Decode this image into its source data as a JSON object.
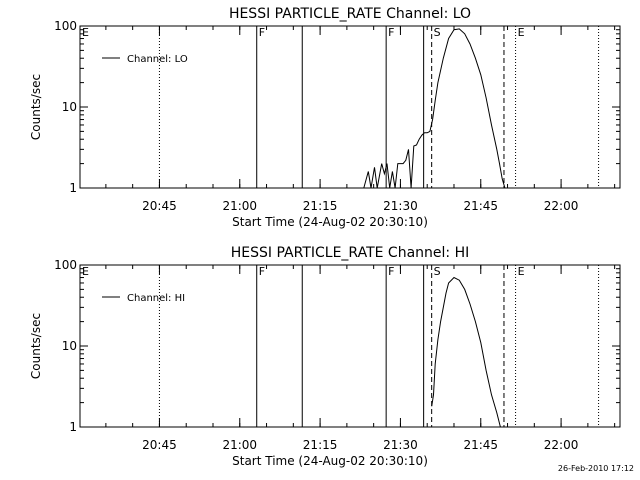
{
  "footer": {
    "date": "26-Feb-2010 17:12"
  },
  "chart_data": [
    {
      "type": "line",
      "title": "HESSI PARTICLE_RATE Channel: LO",
      "xlabel": "Start Time (24-Aug-02 20:30:10)",
      "ylabel": "Counts/sec",
      "yscale": "log",
      "ylim": [
        1,
        100
      ],
      "xlim": [
        "20:30:10",
        "22:11:00"
      ],
      "xticks": [
        "20:45",
        "21:00",
        "21:15",
        "21:30",
        "21:45",
        "22:00"
      ],
      "yticks": [
        "1",
        "10",
        "100"
      ],
      "grid": false,
      "legend": {
        "position": "top-left",
        "entries": [
          "Channel: LO"
        ]
      },
      "series": [
        {
          "name": "Channel: LO",
          "x": [
            "21:23:10",
            "21:24:00",
            "21:24:30",
            "21:25:10",
            "21:25:40",
            "21:26:30",
            "21:27:00",
            "21:27:30",
            "21:28:00",
            "21:28:30",
            "21:29:00",
            "21:29:30",
            "21:30:00",
            "21:30:30",
            "21:31:00",
            "21:31:30",
            "21:32:00",
            "21:32:30",
            "21:33:00",
            "21:33:30",
            "21:34:00",
            "21:34:30",
            "21:35:00",
            "21:35:30",
            "21:36:00",
            "21:36:30",
            "21:37:00",
            "21:38:00",
            "21:39:00",
            "21:40:00",
            "21:41:00",
            "21:42:00",
            "21:43:00",
            "21:44:00",
            "21:45:00",
            "21:46:00",
            "21:47:00",
            "21:48:00",
            "21:48:30",
            "21:49:00",
            "21:49:30"
          ],
          "y": [
            1.0,
            1.6,
            1.0,
            1.8,
            1.0,
            2.0,
            1.5,
            2.0,
            1.0,
            1.6,
            1.0,
            2.0,
            2.0,
            2.0,
            2.2,
            3.0,
            1.0,
            3.3,
            3.4,
            4.0,
            4.5,
            4.8,
            4.8,
            5.0,
            7.0,
            12.0,
            20.0,
            40.0,
            70.0,
            90.0,
            92.0,
            80.0,
            60.0,
            40.0,
            25.0,
            13.0,
            6.0,
            3.0,
            2.0,
            1.3,
            1.0
          ]
        }
      ],
      "annotations": [
        {
          "label": "E",
          "time": "20:30:10",
          "style": "dotted"
        },
        {
          "time": "20:45:00",
          "style": "dotted"
        },
        {
          "label": "F",
          "time": "21:03:10",
          "style": "solid"
        },
        {
          "time": "21:11:40",
          "style": "solid"
        },
        {
          "label": "F",
          "time": "21:27:20",
          "style": "solid"
        },
        {
          "time": "21:34:20",
          "style": "solid"
        },
        {
          "label": "S",
          "time": "21:35:50",
          "style": "dashed"
        },
        {
          "time": "21:49:20",
          "style": "dashed"
        },
        {
          "label": "E",
          "time": "21:51:30",
          "style": "dotted"
        },
        {
          "time": "22:07:00",
          "style": "dotted"
        }
      ]
    },
    {
      "type": "line",
      "title": "HESSI PARTICLE_RATE Channel: HI",
      "xlabel": "Start Time (24-Aug-02 20:30:10)",
      "ylabel": "Counts/sec",
      "yscale": "log",
      "ylim": [
        1,
        100
      ],
      "xlim": [
        "20:30:10",
        "22:11:00"
      ],
      "xticks": [
        "20:45",
        "21:00",
        "21:15",
        "21:30",
        "21:45",
        "22:00"
      ],
      "yticks": [
        "1",
        "10",
        "100"
      ],
      "grid": false,
      "legend": {
        "position": "top-left",
        "entries": [
          "Channel: HI"
        ]
      },
      "series": [
        {
          "name": "Channel: HI",
          "x": [
            "21:35:50",
            "21:36:10",
            "21:36:30",
            "21:37:00",
            "21:37:30",
            "21:38:00",
            "21:38:30",
            "21:39:00",
            "21:40:00",
            "21:41:00",
            "21:42:00",
            "21:43:00",
            "21:44:00",
            "21:45:00",
            "21:46:00",
            "21:47:00",
            "21:48:00",
            "21:48:40"
          ],
          "y": [
            1.8,
            2.5,
            6.0,
            12.0,
            20.0,
            30.0,
            45.0,
            60.0,
            70.0,
            65.0,
            50.0,
            33.0,
            20.0,
            11.0,
            5.0,
            2.5,
            1.5,
            1.0
          ]
        }
      ],
      "annotations": [
        {
          "label": "E",
          "time": "20:30:10",
          "style": "dotted"
        },
        {
          "time": "20:45:00",
          "style": "dotted"
        },
        {
          "label": "F",
          "time": "21:03:10",
          "style": "solid"
        },
        {
          "time": "21:11:40",
          "style": "solid"
        },
        {
          "label": "F",
          "time": "21:27:20",
          "style": "solid"
        },
        {
          "time": "21:34:20",
          "style": "solid"
        },
        {
          "label": "S",
          "time": "21:35:50",
          "style": "dashed"
        },
        {
          "time": "21:49:20",
          "style": "dashed"
        },
        {
          "label": "E",
          "time": "21:51:30",
          "style": "dotted"
        },
        {
          "time": "22:07:00",
          "style": "dotted"
        }
      ]
    }
  ]
}
